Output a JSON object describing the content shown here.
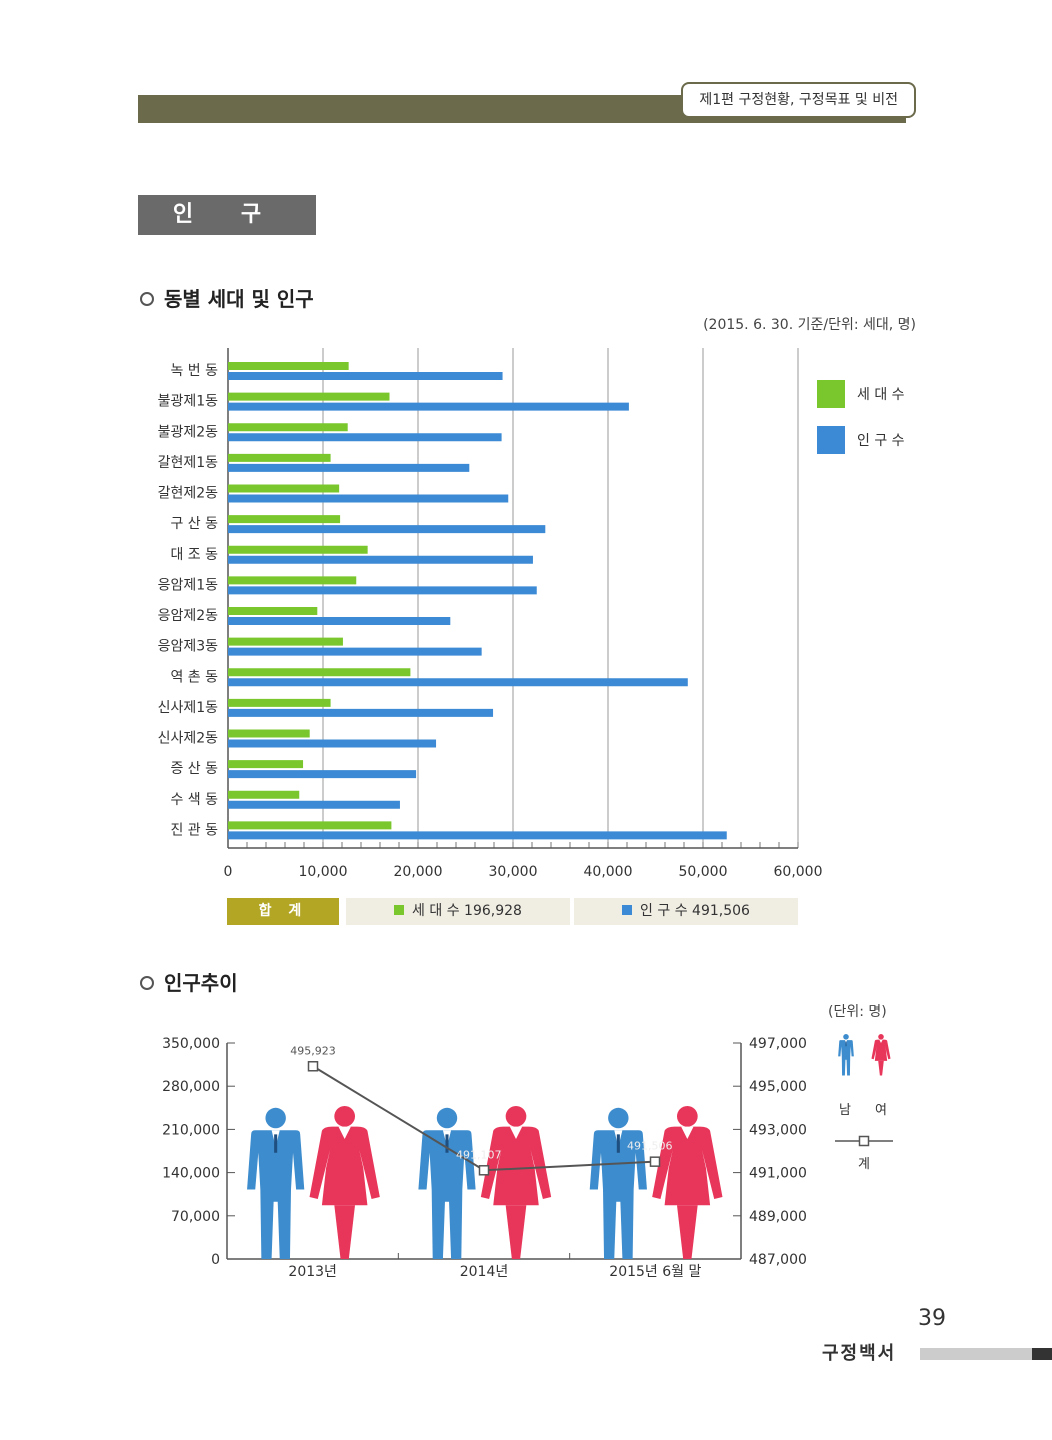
{
  "header": {
    "chapter": "제1편 구정현황, 구정목표 및 비전"
  },
  "section_title": "인 구",
  "chart1": {
    "title": "동별 세대 및 인구",
    "unit_note": "(2015. 6. 30. 기준/단위: 세대, 명)"
  },
  "summary": {
    "label": "합 계",
    "households": "세 대 수 196,928",
    "population": "인 구 수 491,506"
  },
  "chart2": {
    "title": "인구추이",
    "unit_note": "(단위: 명)",
    "legend_male": "남",
    "legend_female": "여",
    "legend_total": "계"
  },
  "footer": {
    "page_number": "39",
    "book_title": "구정백서"
  },
  "colors": {
    "households": "#79c72d",
    "population": "#3c8ad5",
    "male": "#3d8ccd",
    "female": "#e8365a",
    "header": "#6b6a4b",
    "summary_label": "#b3a624",
    "summary_bg": "#f0ede3"
  },
  "chart_data": [
    {
      "type": "bar",
      "orientation": "horizontal",
      "categories": [
        "녹번동",
        "불광제1동",
        "불광제2동",
        "갈현제1동",
        "갈현제2동",
        "구산동",
        "대조동",
        "응암제1동",
        "응암제2동",
        "응암제3동",
        "역촌동",
        "신사제1동",
        "신사제2동",
        "증산동",
        "수색동",
        "진관동"
      ],
      "category_labels": [
        "녹 번 동",
        "불광제1동",
        "불광제2동",
        "갈현제1동",
        "갈현제2동",
        "구 산 동",
        "대 조 동",
        "응암제1동",
        "응암제2동",
        "응암제3동",
        "역 촌 동",
        "신사제1동",
        "신사제2동",
        "증 산 동",
        "수 색 동",
        "진 관 동"
      ],
      "series": [
        {
          "name": "세대수",
          "legend_label": "세 대 수",
          "color": "#79c72d",
          "values": [
            12700,
            17000,
            12600,
            10800,
            11700,
            11800,
            14700,
            13500,
            9400,
            12100,
            19200,
            10800,
            8600,
            7900,
            7500,
            17200
          ]
        },
        {
          "name": "인구수",
          "legend_label": "인 구 수",
          "color": "#3c8ad5",
          "values": [
            28900,
            42200,
            28800,
            25400,
            29500,
            33400,
            32100,
            32500,
            23400,
            26700,
            48400,
            27900,
            21900,
            19800,
            18100,
            52500
          ]
        }
      ],
      "xlim": [
        0,
        60000
      ],
      "xticks": [
        "0",
        "10,000",
        "20,000",
        "30,000",
        "40,000",
        "50,000",
        "60,000"
      ],
      "grid": "vertical",
      "legend_position": "right"
    },
    {
      "type": "bar+line",
      "categories": [
        "2013년",
        "2014년",
        "2015년 6월 말"
      ],
      "series": [
        {
          "name": "남",
          "type": "pictogram",
          "color": "#3d8ccd",
          "values": [
            245000,
            245000,
            245000
          ]
        },
        {
          "name": "여",
          "type": "pictogram",
          "color": "#e8365a",
          "values": [
            248000,
            248000,
            248000
          ]
        },
        {
          "name": "계",
          "type": "line",
          "axis": "right",
          "values": [
            495923,
            491107,
            491506
          ],
          "data_labels": [
            "495,923",
            "491,107",
            "491,506"
          ]
        }
      ],
      "ylim_left": [
        0,
        350000
      ],
      "yticks_left": [
        "0",
        "70,000",
        "140,000",
        "210,000",
        "280,000",
        "350,000"
      ],
      "ylim_right": [
        487000,
        497000
      ],
      "yticks_right": [
        "487,000",
        "489,000",
        "491,000",
        "493,000",
        "495,000",
        "497,000"
      ],
      "legend_position": "right"
    }
  ]
}
